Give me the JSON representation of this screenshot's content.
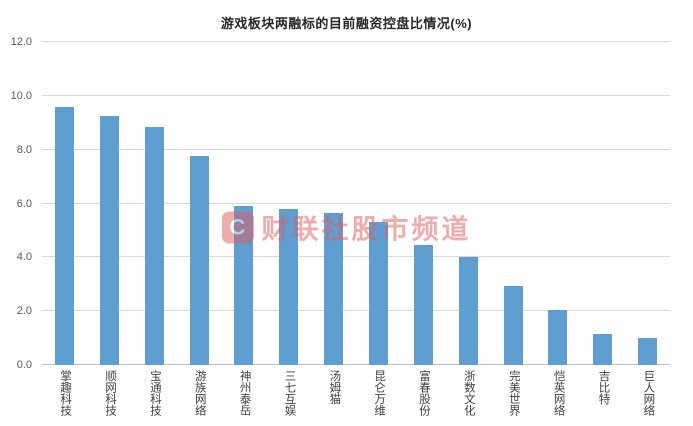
{
  "chart_data": {
    "type": "bar",
    "title": "游戏板块两融标的目前融资控盘比情况(%)",
    "categories": [
      "掌趣科技",
      "顺网科技",
      "宝通科技",
      "游族网络",
      "神州泰岳",
      "三七互娱",
      "汤姆猫",
      "昆仑万维",
      "富春股份",
      "浙数文化",
      "完美世界",
      "恺英网络",
      "吉比特",
      "巨人网络"
    ],
    "values": [
      9.6,
      9.25,
      8.85,
      7.75,
      5.9,
      5.8,
      5.65,
      5.3,
      4.45,
      4.0,
      2.95,
      2.05,
      1.15,
      1.0
    ],
    "xlabel": "",
    "ylabel": "",
    "ylim": [
      0,
      12
    ],
    "yticks": [
      "0.0",
      "2.0",
      "4.0",
      "6.0",
      "8.0",
      "10.0",
      "12.0"
    ],
    "grid": true,
    "legend": "none",
    "bar_color": "#5F9ED1"
  },
  "watermark": {
    "logo_text": "C",
    "text": "财联社股市频道",
    "color": "#E05C5C"
  },
  "colors": {
    "title": "#262626",
    "axis_label": "#595959",
    "gridline": "#D9D9D9",
    "background": "#FFFFFF"
  }
}
